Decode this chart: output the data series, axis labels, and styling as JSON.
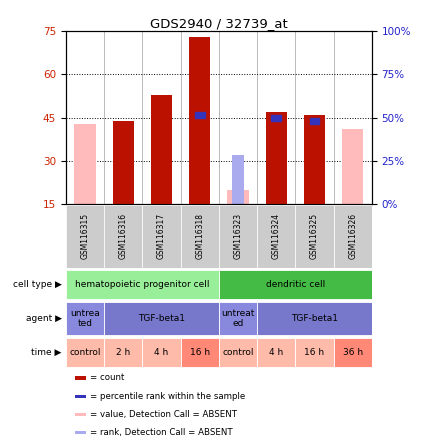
{
  "title": "GDS2940 / 32739_at",
  "samples": [
    "GSM116315",
    "GSM116316",
    "GSM116317",
    "GSM116318",
    "GSM116323",
    "GSM116324",
    "GSM116325",
    "GSM116326"
  ],
  "red_bars": [
    0,
    44,
    53,
    73,
    0,
    47,
    46,
    0
  ],
  "blue_markers": [
    0,
    0,
    0,
    46,
    0,
    45,
    44,
    0
  ],
  "pink_bars": [
    43,
    0,
    0,
    0,
    20,
    0,
    0,
    41
  ],
  "light_blue_bars": [
    0,
    0,
    0,
    0,
    32,
    0,
    0,
    0
  ],
  "ylim_left": [
    15,
    75
  ],
  "yticks_left": [
    15,
    30,
    45,
    60,
    75
  ],
  "yticks_right": [
    0,
    25,
    50,
    75,
    100
  ],
  "cell_type_row": [
    {
      "label": "hematopoietic progenitor cell",
      "start": 0,
      "end": 4,
      "color": "#99EE99"
    },
    {
      "label": "dendritic cell",
      "start": 4,
      "end": 8,
      "color": "#44BB44"
    }
  ],
  "agent_row": [
    {
      "label": "untrea\nted",
      "start": 0,
      "end": 1,
      "color": "#8888DD"
    },
    {
      "label": "TGF-beta1",
      "start": 1,
      "end": 4,
      "color": "#7777CC"
    },
    {
      "label": "untreat\ned",
      "start": 4,
      "end": 5,
      "color": "#8888DD"
    },
    {
      "label": "TGF-beta1",
      "start": 5,
      "end": 8,
      "color": "#7777CC"
    }
  ],
  "time_row": [
    {
      "label": "control",
      "start": 0,
      "end": 1,
      "color": "#FFBBAA"
    },
    {
      "label": "2 h",
      "start": 1,
      "end": 2,
      "color": "#FFBBAA"
    },
    {
      "label": "4 h",
      "start": 2,
      "end": 3,
      "color": "#FFBBAA"
    },
    {
      "label": "16 h",
      "start": 3,
      "end": 4,
      "color": "#FF8877"
    },
    {
      "label": "control",
      "start": 4,
      "end": 5,
      "color": "#FFBBAA"
    },
    {
      "label": "4 h",
      "start": 5,
      "end": 6,
      "color": "#FFBBAA"
    },
    {
      "label": "16 h",
      "start": 6,
      "end": 7,
      "color": "#FFBBAA"
    },
    {
      "label": "36 h",
      "start": 7,
      "end": 8,
      "color": "#FF8877"
    }
  ],
  "red_bar_color": "#BB1100",
  "blue_marker_color": "#3333BB",
  "pink_bar_color": "#FFBBBB",
  "light_blue_bar_color": "#AAAAEE",
  "left_tick_color": "#CC2200",
  "right_tick_color": "#2222CC",
  "sample_bg_color": "#CCCCCC",
  "legend_items": [
    {
      "color": "#BB1100",
      "marker": "s",
      "label": "count"
    },
    {
      "color": "#3333BB",
      "marker": "s",
      "label": "percentile rank within the sample"
    },
    {
      "color": "#FFBBBB",
      "marker": "s",
      "label": "value, Detection Call = ABSENT"
    },
    {
      "color": "#AAAAEE",
      "marker": "s",
      "label": "rank, Detection Call = ABSENT"
    }
  ]
}
